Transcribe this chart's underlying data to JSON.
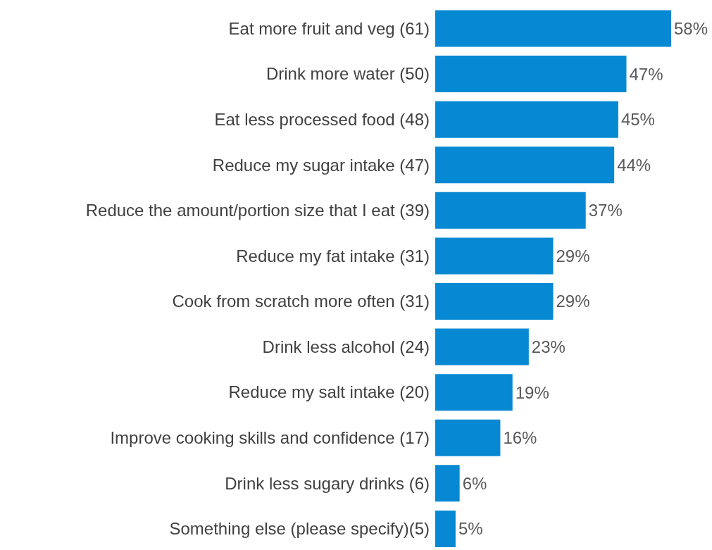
{
  "chart_data": {
    "type": "bar",
    "orientation": "horizontal",
    "categories": [
      "Eat more fruit and veg (61)",
      "Drink more water (50)",
      "Eat less processed food (48)",
      "Reduce my sugar intake (47)",
      "Reduce the amount/portion size that I eat (39)",
      "Reduce my fat intake (31)",
      "Cook from scratch more often (31)",
      "Drink less alcohol (24)",
      "Reduce my salt intake (20)",
      "Improve cooking skills and confidence (17)",
      "Drink less sugary drinks (6)",
      "Something else (please specify)(5)"
    ],
    "values": [
      58,
      47,
      45,
      44,
      37,
      29,
      29,
      23,
      19,
      16,
      6,
      5
    ],
    "value_labels": [
      "58%",
      "47%",
      "45%",
      "44%",
      "37%",
      "29%",
      "29%",
      "23%",
      "19%",
      "16%",
      "6%",
      "5%"
    ],
    "color": "#0689d2"
  }
}
